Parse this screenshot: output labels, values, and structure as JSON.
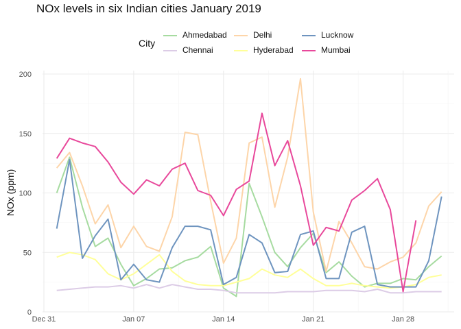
{
  "chart_data": {
    "type": "line",
    "title": "NOx levels in six Indian cities January 2019",
    "xlabel": "",
    "ylabel": "NOx (ppm)",
    "ylim": [
      0,
      200
    ],
    "y_ticks": [
      0,
      50,
      100,
      150,
      200
    ],
    "x_ticks": [
      "Dec 31",
      "Jan 07",
      "Jan 14",
      "Jan 21",
      "Jan 28"
    ],
    "grid": true,
    "legend": {
      "title": "City",
      "position": "top"
    },
    "x": [
      "2019-01-01",
      "2019-01-02",
      "2019-01-03",
      "2019-01-04",
      "2019-01-05",
      "2019-01-06",
      "2019-01-07",
      "2019-01-08",
      "2019-01-09",
      "2019-01-10",
      "2019-01-11",
      "2019-01-12",
      "2019-01-13",
      "2019-01-14",
      "2019-01-15",
      "2019-01-16",
      "2019-01-17",
      "2019-01-18",
      "2019-01-19",
      "2019-01-20",
      "2019-01-21",
      "2019-01-22",
      "2019-01-23",
      "2019-01-24",
      "2019-01-25",
      "2019-01-26",
      "2019-01-27",
      "2019-01-28",
      "2019-01-29",
      "2019-01-30",
      "2019-01-31"
    ],
    "series": [
      {
        "name": "Ahmedabad",
        "color": "#a6dba0",
        "values": [
          100,
          130,
          88,
          55,
          62,
          40,
          22,
          28,
          36,
          37,
          43,
          46,
          55,
          20,
          13,
          108,
          80,
          50,
          38,
          54,
          66,
          33,
          42,
          30,
          21,
          24,
          24,
          28,
          27,
          38,
          47
        ]
      },
      {
        "name": "Chennai",
        "color": "#dccce6",
        "values": [
          18,
          19,
          20,
          21,
          21,
          22,
          20,
          23,
          20,
          23,
          21,
          19,
          19,
          18,
          16,
          16,
          16,
          16,
          17,
          17,
          17,
          18,
          18,
          18,
          17,
          19,
          16,
          16,
          17,
          17,
          17
        ]
      },
      {
        "name": "Delhi",
        "color": "#fdd5a9",
        "values": [
          121,
          134,
          106,
          74,
          90,
          54,
          72,
          55,
          51,
          80,
          151,
          149,
          93,
          41,
          62,
          142,
          147,
          88,
          130,
          196,
          84,
          34,
          76,
          58,
          38,
          36,
          42,
          46,
          58,
          89,
          101
        ]
      },
      {
        "name": "Hyderabad",
        "color": "#ffff99",
        "values": [
          46,
          50,
          48,
          44,
          32,
          27,
          32,
          40,
          48,
          34,
          26,
          23,
          22,
          22,
          25,
          28,
          36,
          31,
          29,
          36,
          28,
          22,
          22,
          24,
          22,
          21,
          20,
          21,
          23,
          29,
          31
        ]
      },
      {
        "name": "Lucknow",
        "color": "#6e94bf",
        "values": [
          70,
          128,
          45,
          64,
          78,
          27,
          40,
          27,
          25,
          54,
          72,
          72,
          69,
          23,
          29,
          65,
          58,
          33,
          34,
          65,
          68,
          28,
          28,
          67,
          72,
          23,
          21,
          21,
          21,
          43,
          97
        ]
      },
      {
        "name": "Mumbai",
        "color": "#e8489b",
        "values": [
          129,
          146,
          142,
          139,
          126,
          109,
          99,
          111,
          106,
          120,
          125,
          102,
          98,
          81,
          103,
          110,
          167,
          123,
          144,
          106,
          56,
          71,
          68,
          94,
          102,
          112,
          86,
          17,
          77,
          null,
          null
        ]
      }
    ]
  }
}
